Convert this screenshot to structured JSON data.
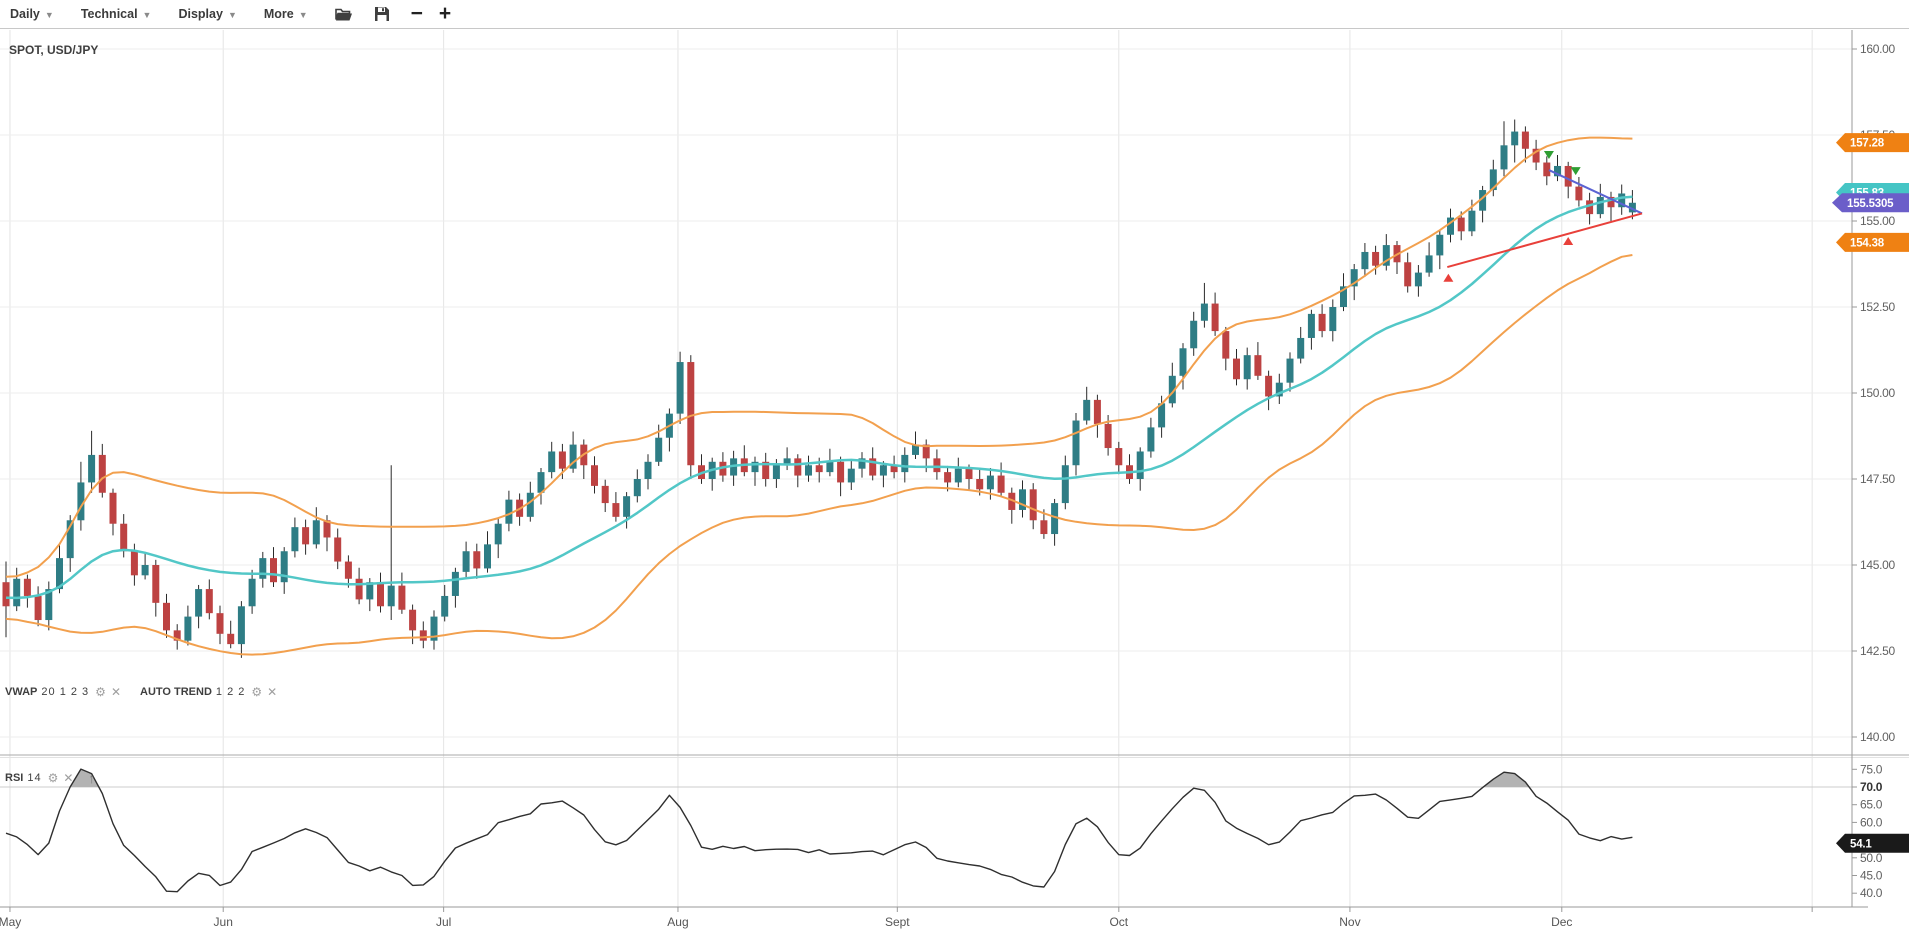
{
  "toolbar": {
    "menus": [
      {
        "label": "Daily"
      },
      {
        "label": "Technical"
      },
      {
        "label": "Display"
      },
      {
        "label": "More"
      }
    ],
    "icons": [
      {
        "name": "open-folder-icon"
      },
      {
        "name": "save-icon"
      },
      {
        "name": "zoom-out-icon",
        "glyph": "−"
      },
      {
        "name": "zoom-in-icon",
        "glyph": "+"
      }
    ]
  },
  "symbol_title": "SPOT, USD/JPY",
  "indicators": {
    "vwap_name": "VWAP",
    "vwap_params": "20 1 2 3",
    "autotrend_name": "AUTO TREND",
    "autotrend_params": "1 2 2",
    "rsi_name": "RSI",
    "rsi_params": "14",
    "gear_glyph": "⚙",
    "close_glyph": "✕",
    "uparrow_glyph": "↑"
  },
  "price_axis": {
    "ticks": [
      "160.00",
      "157.50",
      "155.00",
      "152.50",
      "150.00",
      "147.50",
      "145.00",
      "142.50",
      "140.00"
    ]
  },
  "rsi_axis": {
    "ticks": [
      {
        "label": "75.0",
        "bold": false
      },
      {
        "label": "70.0",
        "bold": true
      },
      {
        "label": "65.0",
        "bold": false
      },
      {
        "label": "60.0",
        "bold": false
      },
      {
        "label": "55.0",
        "bold": false
      },
      {
        "label": "50.0",
        "bold": false
      },
      {
        "label": "45.0",
        "bold": false
      },
      {
        "label": "40.0",
        "bold": false
      }
    ]
  },
  "price_tags": [
    {
      "text": "157.28",
      "value": 157.28,
      "color": "#ef8113",
      "name": "upper-band-tag"
    },
    {
      "text": "155.83",
      "value": 155.83,
      "color": "#45c5c5",
      "name": "vwap-tag"
    },
    {
      "text": "155.5305",
      "value": 155.5305,
      "color": "#6b5ec9",
      "name": "last-price-tag",
      "wide": true
    },
    {
      "text": "154.38",
      "value": 154.38,
      "color": "#ef8113",
      "name": "lower-band-tag"
    }
  ],
  "rsi_tag": {
    "text": "54.1",
    "value": 54.1,
    "color": "#1a1a1a",
    "name": "rsi-value-tag"
  },
  "months": [
    {
      "label": "May",
      "i": 0.37
    },
    {
      "label": "Jun",
      "i": 20.3
    },
    {
      "label": "Jul",
      "i": 40.9
    },
    {
      "label": "Aug",
      "i": 62.8
    },
    {
      "label": "Sept",
      "i": 83.3
    },
    {
      "label": "Oct",
      "i": 104.0
    },
    {
      "label": "Nov",
      "i": 125.6
    },
    {
      "label": "Dec",
      "i": 145.4
    },
    {
      "label": "",
      "i": 168.8
    }
  ],
  "chart_data": {
    "type": "candlestick",
    "symbol": "USD/JPY",
    "interval": "Daily",
    "price_axis_range": [
      140,
      160
    ],
    "rsi_axis_range": [
      40,
      75
    ],
    "closes": [
      143.8,
      144.6,
      144.1,
      143.4,
      144.3,
      145.2,
      146.3,
      147.4,
      148.2,
      147.1,
      146.2,
      145.4,
      144.7,
      145.0,
      143.9,
      143.1,
      142.8,
      143.5,
      144.3,
      143.6,
      143.0,
      142.7,
      143.8,
      144.6,
      145.2,
      144.5,
      145.4,
      146.1,
      145.6,
      146.3,
      145.8,
      145.1,
      144.6,
      144.0,
      144.5,
      143.8,
      144.4,
      143.7,
      143.1,
      142.8,
      143.5,
      144.1,
      144.8,
      145.4,
      144.9,
      145.6,
      146.2,
      146.9,
      146.4,
      147.1,
      147.7,
      148.3,
      147.8,
      148.5,
      147.9,
      147.3,
      146.8,
      146.4,
      147.0,
      147.5,
      148.0,
      148.7,
      149.4,
      150.9,
      147.9,
      147.5,
      148.0,
      147.6,
      148.1,
      147.7,
      148.0,
      147.5,
      147.9,
      148.1,
      147.6,
      147.9,
      147.7,
      148.0,
      147.4,
      147.8,
      148.1,
      147.6,
      147.9,
      147.7,
      148.2,
      148.5,
      148.1,
      147.7,
      147.4,
      147.8,
      147.5,
      147.2,
      147.6,
      147.1,
      146.6,
      147.2,
      146.3,
      145.9,
      146.8,
      147.9,
      149.2,
      149.8,
      149.1,
      148.4,
      147.9,
      147.5,
      148.3,
      149.0,
      149.7,
      150.5,
      151.3,
      152.1,
      152.6,
      151.8,
      151.0,
      150.4,
      151.1,
      150.5,
      149.9,
      150.3,
      151.0,
      151.6,
      152.3,
      151.8,
      152.5,
      153.1,
      153.6,
      154.1,
      153.7,
      154.3,
      153.8,
      153.1,
      153.5,
      154.0,
      154.6,
      155.1,
      154.7,
      155.3,
      155.9,
      156.5,
      157.2,
      157.6,
      157.1,
      156.7,
      156.3,
      156.6,
      156.0,
      155.6,
      155.2,
      155.7,
      155.4,
      155.8,
      155.53
    ],
    "wick_up_pattern": [
      0.18,
      0.32,
      0.12,
      0.28,
      0.22,
      0.38,
      0.15,
      0.26
    ],
    "wick_down_pattern": [
      0.26,
      0.14,
      0.34,
      0.18,
      0.3,
      0.12,
      0.4,
      0.22
    ],
    "special_candles": {
      "0": [
        144.5,
        145.1,
        142.9,
        143.8
      ],
      "7": [
        146.3,
        148.0,
        146.0,
        147.4
      ],
      "8": [
        147.4,
        148.9,
        147.1,
        148.2
      ],
      "36": [
        143.8,
        147.9,
        143.4,
        144.4
      ],
      "63": [
        149.4,
        151.2,
        149.1,
        150.9
      ],
      "64": [
        150.9,
        151.1,
        147.5,
        147.9
      ],
      "112": [
        152.1,
        153.2,
        151.9,
        152.6
      ],
      "140": [
        156.5,
        157.9,
        156.3,
        157.2
      ],
      "141": [
        157.2,
        157.95,
        156.7,
        157.6
      ],
      "152": [
        155.25,
        155.9,
        155.05,
        155.53
      ]
    },
    "vwap_period": 20,
    "band_sigma_mult": 1.35,
    "band_pad": 0.25,
    "rsi_period": 14,
    "rsi_overbought_level": 70,
    "trendlines": [
      {
        "name": "auto-trend-resistance",
        "color": "#5b63d3",
        "from_i": 144.2,
        "from_p": 156.48,
        "to_i": 152.9,
        "to_p": 155.22
      },
      {
        "name": "auto-trend-support",
        "color": "#e8403a",
        "from_i": 134.7,
        "from_p": 153.66,
        "to_i": 152.9,
        "to_p": 155.22
      }
    ],
    "markers": [
      {
        "type": "down-triangle",
        "color": "#2f9e33",
        "i": 144.2,
        "p": 156.92
      },
      {
        "type": "down-triangle",
        "color": "#2f9e33",
        "i": 146.7,
        "p": 156.45
      },
      {
        "type": "up-triangle",
        "color": "#e8403a",
        "i": 134.8,
        "p": 153.35
      },
      {
        "type": "up-triangle",
        "color": "#e8403a",
        "i": 146.0,
        "p": 154.42
      }
    ],
    "colors": {
      "candle_up": "#2e7d85",
      "candle_down": "#bd4242",
      "wick": "#2a2a2a",
      "band": "#f2a04e",
      "vwap": "#52c7c7",
      "rsi_line": "#2f2f2f",
      "rsi_fill": "#b3b3b3",
      "grid": "#ededed",
      "month_grid": "#e4e4e4",
      "axis": "#999999",
      "divider": "#aaaaaa"
    }
  }
}
